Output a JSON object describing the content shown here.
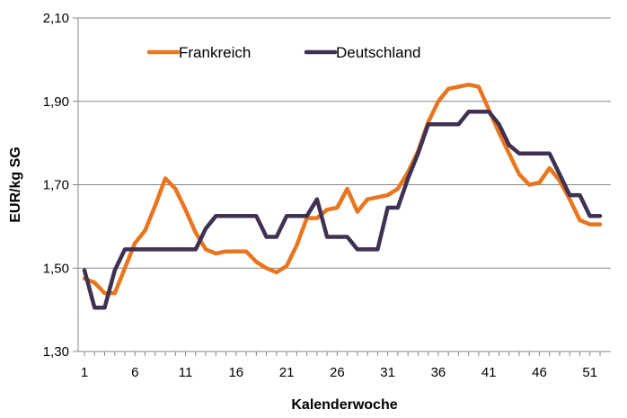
{
  "chart_data": {
    "type": "line",
    "xlabel": "Kalenderwoche",
    "ylabel": "EUR/kg SG",
    "ylim": [
      1.3,
      2.1
    ],
    "y_ticks": [
      1.3,
      1.5,
      1.7,
      1.9,
      2.1
    ],
    "y_tick_labels": [
      "1,30",
      "1,50",
      "1,70",
      "1,90",
      "2,10"
    ],
    "xlim": [
      1,
      52
    ],
    "x_ticks": [
      1,
      6,
      11,
      16,
      21,
      26,
      31,
      36,
      41,
      46,
      51
    ],
    "x_tick_labels": [
      "1",
      "6",
      "11",
      "16",
      "21",
      "26",
      "31",
      "36",
      "41",
      "46",
      "51"
    ],
    "grid": "horizontal",
    "legend_position": "top-left",
    "x": [
      1,
      2,
      3,
      4,
      5,
      6,
      7,
      8,
      9,
      10,
      11,
      12,
      13,
      14,
      15,
      16,
      17,
      18,
      19,
      20,
      21,
      22,
      23,
      24,
      25,
      26,
      27,
      28,
      29,
      30,
      31,
      32,
      33,
      34,
      35,
      36,
      37,
      38,
      39,
      40,
      41,
      42,
      43,
      44,
      45,
      46,
      47,
      48,
      49,
      50,
      51,
      52
    ],
    "series": [
      {
        "name": "Frankreich",
        "color": "#E8761E",
        "values": [
          1.475,
          1.465,
          1.44,
          1.44,
          1.5,
          1.56,
          1.59,
          1.65,
          1.715,
          1.69,
          1.64,
          1.585,
          1.545,
          1.535,
          1.54,
          1.54,
          1.54,
          1.515,
          1.5,
          1.49,
          1.505,
          1.555,
          1.62,
          1.62,
          1.64,
          1.645,
          1.69,
          1.635,
          1.665,
          1.67,
          1.675,
          1.69,
          1.73,
          1.78,
          1.85,
          1.9,
          1.93,
          1.935,
          1.94,
          1.935,
          1.88,
          1.825,
          1.775,
          1.725,
          1.7,
          1.705,
          1.74,
          1.71,
          1.665,
          1.615,
          1.605,
          1.605
        ]
      },
      {
        "name": "Deutschland",
        "color": "#3F3151",
        "values": [
          1.495,
          1.405,
          1.405,
          1.495,
          1.545,
          1.545,
          1.545,
          1.545,
          1.545,
          1.545,
          1.545,
          1.545,
          1.595,
          1.625,
          1.625,
          1.625,
          1.625,
          1.625,
          1.575,
          1.575,
          1.625,
          1.625,
          1.625,
          1.665,
          1.575,
          1.575,
          1.575,
          1.545,
          1.545,
          1.545,
          1.645,
          1.645,
          1.715,
          1.775,
          1.845,
          1.845,
          1.845,
          1.845,
          1.875,
          1.875,
          1.875,
          1.845,
          1.795,
          1.775,
          1.775,
          1.775,
          1.775,
          1.725,
          1.675,
          1.675,
          1.625,
          1.625
        ]
      }
    ]
  }
}
